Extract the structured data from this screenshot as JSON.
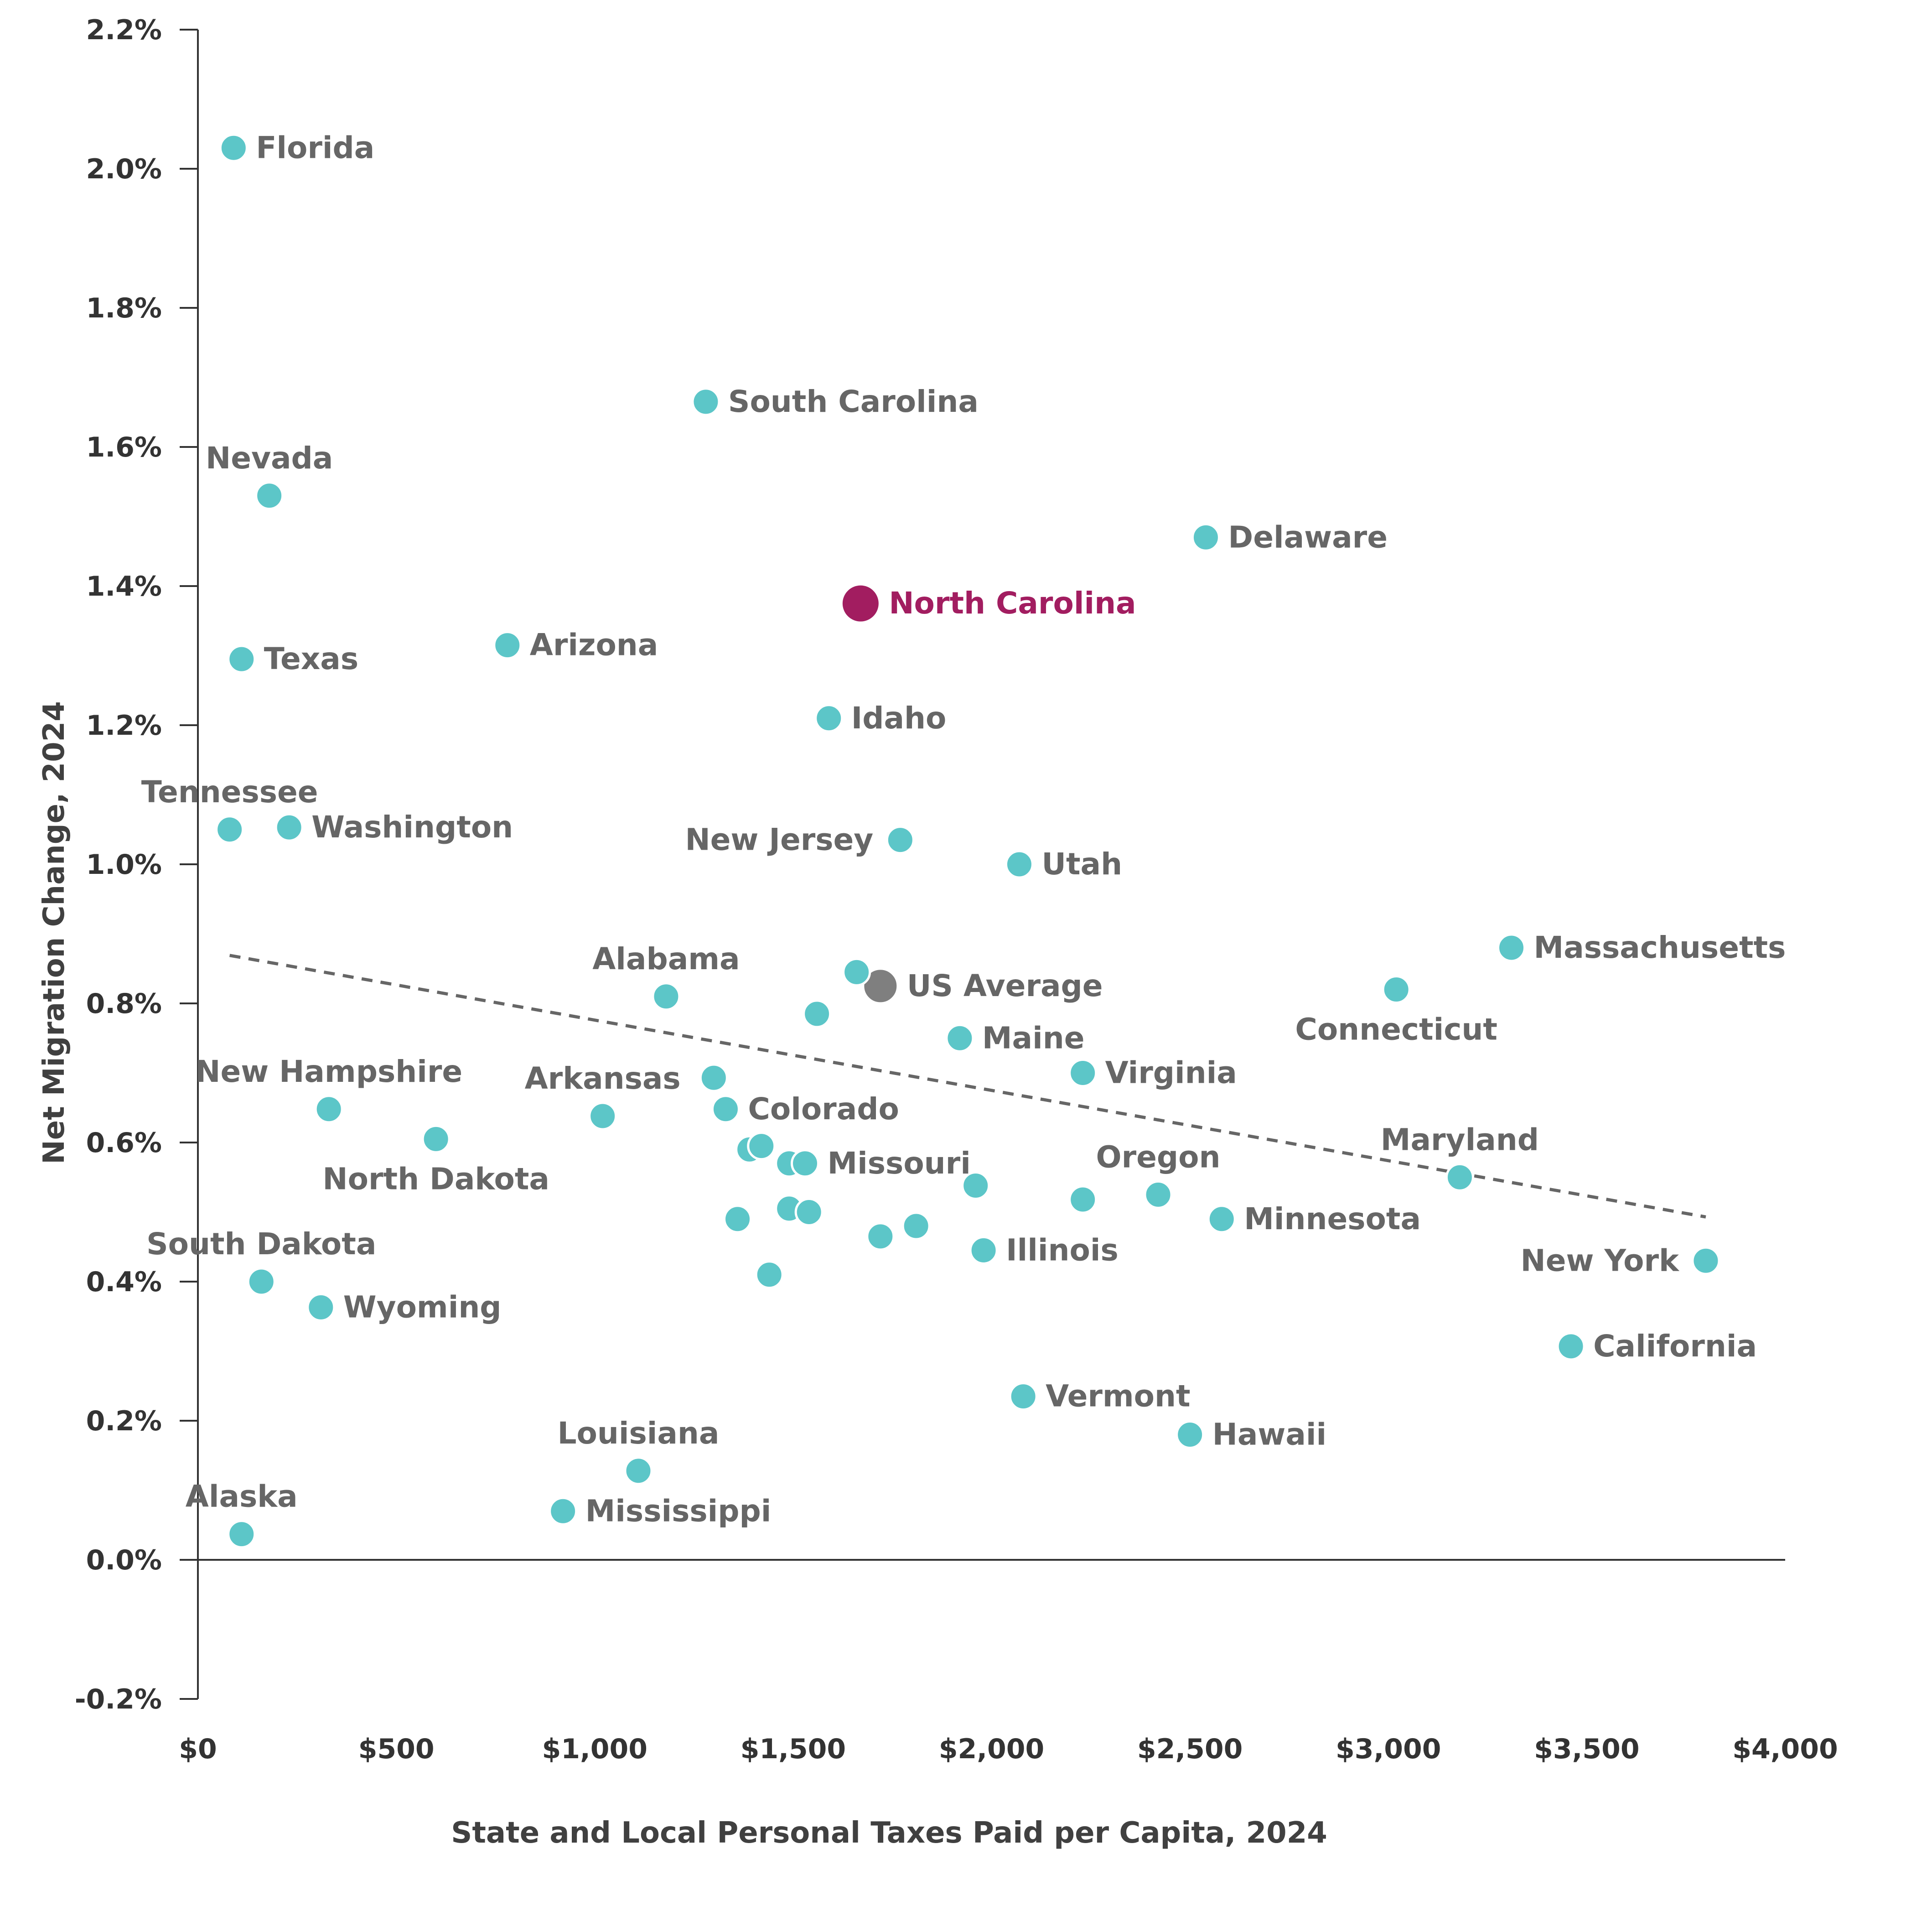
{
  "chart_data": {
    "type": "scatter",
    "title": "",
    "xlabel": "State and Local Personal Taxes Paid per Capita, 2024",
    "ylabel": "Net Migration Change, 2024",
    "xlim": [
      0,
      4000
    ],
    "ylim": [
      -0.2,
      2.2
    ],
    "x_ticks": [
      0,
      500,
      1000,
      1500,
      2000,
      2500,
      3000,
      3500,
      4000
    ],
    "x_tick_labels": [
      "$0",
      "$500",
      "$1,000",
      "$1,500",
      "$2,000",
      "$2,500",
      "$3,000",
      "$3,500",
      "$4,000"
    ],
    "y_ticks": [
      -0.2,
      0.0,
      0.2,
      0.4,
      0.6,
      0.8,
      1.0,
      1.2,
      1.4,
      1.6,
      1.8,
      2.0,
      2.2
    ],
    "y_tick_labels": [
      "-0.2%",
      "0.0%",
      "0.2%",
      "0.4%",
      "0.6%",
      "0.8%",
      "1.0%",
      "1.2%",
      "1.4%",
      "1.6%",
      "1.8%",
      "2.0%",
      "2.2%"
    ],
    "colors": {
      "point": "#5cc6c8",
      "highlight": "#a21d60",
      "average": "#7f7f7f",
      "trend": "#666666"
    },
    "trendline": {
      "x": [
        80,
        3800
      ],
      "y": [
        0.869,
        0.493
      ]
    },
    "points": [
      {
        "name": "Florida",
        "x": 90,
        "y": 2.03,
        "label_pos": "right"
      },
      {
        "name": "South Carolina",
        "x": 1280,
        "y": 1.665,
        "label_pos": "right"
      },
      {
        "name": "Nevada",
        "x": 180,
        "y": 1.53,
        "label_pos": "above"
      },
      {
        "name": "Delaware",
        "x": 2540,
        "y": 1.47,
        "label_pos": "right"
      },
      {
        "name": "North Carolina",
        "x": 1670,
        "y": 1.375,
        "label_pos": "right",
        "highlight": true
      },
      {
        "name": "Texas",
        "x": 110,
        "y": 1.295,
        "label_pos": "right"
      },
      {
        "name": "Arizona",
        "x": 780,
        "y": 1.315,
        "label_pos": "right"
      },
      {
        "name": "Idaho",
        "x": 1590,
        "y": 1.21,
        "label_pos": "right"
      },
      {
        "name": "Tennessee",
        "x": 80,
        "y": 1.05,
        "label_pos": "above"
      },
      {
        "name": "Washington",
        "x": 230,
        "y": 1.053,
        "label_pos": "right"
      },
      {
        "name": "New Jersey",
        "x": 1770,
        "y": 1.035,
        "label_pos": "left"
      },
      {
        "name": "Utah",
        "x": 2070,
        "y": 1.0,
        "label_pos": "right"
      },
      {
        "name": "Massachusetts",
        "x": 3310,
        "y": 0.88,
        "label_pos": "right"
      },
      {
        "name": "Connecticut",
        "x": 3020,
        "y": 0.82,
        "label_pos": "below"
      },
      {
        "name": "Alabama",
        "x": 1180,
        "y": 0.81,
        "label_pos": "above"
      },
      {
        "name": "US Average",
        "x": 1720,
        "y": 0.825,
        "label_pos": "right",
        "average": true
      },
      {
        "name": "",
        "x": 1660,
        "y": 0.845
      },
      {
        "name": "",
        "x": 1560,
        "y": 0.785
      },
      {
        "name": "Maine",
        "x": 1920,
        "y": 0.75,
        "label_pos": "right"
      },
      {
        "name": "Virginia",
        "x": 2230,
        "y": 0.7,
        "label_pos": "right"
      },
      {
        "name": "New Hampshire",
        "x": 330,
        "y": 0.648,
        "label_pos": "above"
      },
      {
        "name": "North Dakota",
        "x": 600,
        "y": 0.605,
        "label_pos": "below"
      },
      {
        "name": "Arkansas",
        "x": 1020,
        "y": 0.638,
        "label_pos": "above"
      },
      {
        "name": "",
        "x": 1300,
        "y": 0.693
      },
      {
        "name": "Colorado",
        "x": 1330,
        "y": 0.648,
        "label_pos": "right"
      },
      {
        "name": "",
        "x": 1390,
        "y": 0.59
      },
      {
        "name": "",
        "x": 1420,
        "y": 0.595
      },
      {
        "name": "",
        "x": 1490,
        "y": 0.57
      },
      {
        "name": "Missouri",
        "x": 1530,
        "y": 0.57,
        "label_pos": "right"
      },
      {
        "name": "",
        "x": 1360,
        "y": 0.49
      },
      {
        "name": "",
        "x": 1490,
        "y": 0.505
      },
      {
        "name": "",
        "x": 1540,
        "y": 0.5
      },
      {
        "name": "",
        "x": 1440,
        "y": 0.41
      },
      {
        "name": "",
        "x": 1720,
        "y": 0.465
      },
      {
        "name": "",
        "x": 1810,
        "y": 0.48
      },
      {
        "name": "",
        "x": 1960,
        "y": 0.538
      },
      {
        "name": "Illinois",
        "x": 1980,
        "y": 0.445,
        "label_pos": "right"
      },
      {
        "name": "",
        "x": 2230,
        "y": 0.518
      },
      {
        "name": "Oregon",
        "x": 2420,
        "y": 0.525,
        "label_pos": "above"
      },
      {
        "name": "Minnesota",
        "x": 2580,
        "y": 0.49,
        "label_pos": "right"
      },
      {
        "name": "Maryland",
        "x": 3180,
        "y": 0.55,
        "label_pos": "above"
      },
      {
        "name": "New York",
        "x": 3800,
        "y": 0.43,
        "label_pos": "left"
      },
      {
        "name": "California",
        "x": 3460,
        "y": 0.307,
        "label_pos": "right"
      },
      {
        "name": "South Dakota",
        "x": 160,
        "y": 0.4,
        "label_pos": "above"
      },
      {
        "name": "Wyoming",
        "x": 310,
        "y": 0.363,
        "label_pos": "right"
      },
      {
        "name": "Vermont",
        "x": 2080,
        "y": 0.235,
        "label_pos": "right"
      },
      {
        "name": "Hawaii",
        "x": 2500,
        "y": 0.18,
        "label_pos": "right"
      },
      {
        "name": "Louisiana",
        "x": 1110,
        "y": 0.128,
        "label_pos": "above"
      },
      {
        "name": "Mississippi",
        "x": 920,
        "y": 0.07,
        "label_pos": "right"
      },
      {
        "name": "Alaska",
        "x": 110,
        "y": 0.037,
        "label_pos": "above"
      }
    ]
  }
}
